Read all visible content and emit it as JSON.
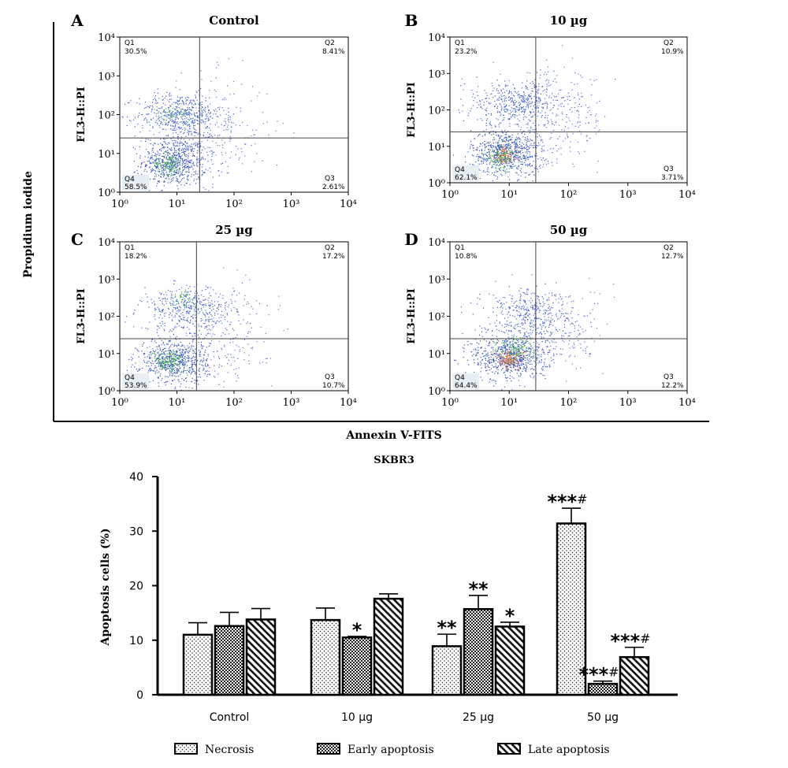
{
  "figure": {
    "y_axis_title": "Propidium iodide",
    "x_axis_title": "Annexin V-FITS"
  },
  "chart_data": [
    {
      "type": "scatter",
      "panel": "A",
      "title": "Control",
      "ylabel": "FL3-H::PI",
      "xscale": "log",
      "yscale": "log",
      "xlim": [
        1,
        10000
      ],
      "ylim": [
        1,
        10000
      ],
      "x_ticks": [
        "10⁰",
        "10¹",
        "10²",
        "10³",
        "10⁴"
      ],
      "y_ticks": [
        "10⁰",
        "10¹",
        "10²",
        "10³",
        "10⁴"
      ],
      "gate": {
        "x": 25,
        "y": 25
      },
      "quadrants": [
        {
          "name": "Q1",
          "value": "30.5%"
        },
        {
          "name": "Q2",
          "value": "8.41%"
        },
        {
          "name": "Q3",
          "value": "2.61%"
        },
        {
          "name": "Q4",
          "value": "58.5%"
        }
      ]
    },
    {
      "type": "scatter",
      "panel": "B",
      "title": "10 µg",
      "ylabel": "FL3-H::PI",
      "xscale": "log",
      "yscale": "log",
      "xlim": [
        1,
        10000
      ],
      "ylim": [
        1,
        10000
      ],
      "x_ticks": [
        "10⁰",
        "10¹",
        "10²",
        "10³",
        "10⁴"
      ],
      "y_ticks": [
        "10⁰",
        "10¹",
        "10²",
        "10³",
        "10⁴"
      ],
      "gate": {
        "x": 28,
        "y": 25
      },
      "quadrants": [
        {
          "name": "Q1",
          "value": "23.2%"
        },
        {
          "name": "Q2",
          "value": "10.9%"
        },
        {
          "name": "Q3",
          "value": "3.71%"
        },
        {
          "name": "Q4",
          "value": "62.1%"
        }
      ]
    },
    {
      "type": "scatter",
      "panel": "C",
      "title": "25 µg",
      "ylabel": "FL3-H::PI",
      "xscale": "log",
      "yscale": "log",
      "xlim": [
        1,
        10000
      ],
      "ylim": [
        1,
        10000
      ],
      "x_ticks": [
        "10⁰",
        "10¹",
        "10²",
        "10³",
        "10⁴"
      ],
      "y_ticks": [
        "10⁰",
        "10¹",
        "10²",
        "10³",
        "10⁴"
      ],
      "gate": {
        "x": 22,
        "y": 25
      },
      "quadrants": [
        {
          "name": "Q1",
          "value": "18.2%"
        },
        {
          "name": "Q2",
          "value": "17.2%"
        },
        {
          "name": "Q3",
          "value": "10.7%"
        },
        {
          "name": "Q4",
          "value": "53.9%"
        }
      ]
    },
    {
      "type": "scatter",
      "panel": "D",
      "title": "50 µg",
      "ylabel": "FL3-H::PI",
      "xscale": "log",
      "yscale": "log",
      "xlim": [
        1,
        10000
      ],
      "ylim": [
        1,
        10000
      ],
      "x_ticks": [
        "10⁰",
        "10¹",
        "10²",
        "10³",
        "10⁴"
      ],
      "y_ticks": [
        "10⁰",
        "10¹",
        "10²",
        "10³",
        "10⁴"
      ],
      "gate": {
        "x": 28,
        "y": 25
      },
      "quadrants": [
        {
          "name": "Q1",
          "value": "10.8%"
        },
        {
          "name": "Q2",
          "value": "12.7%"
        },
        {
          "name": "Q3",
          "value": "12.2%"
        },
        {
          "name": "Q4",
          "value": "64.4%"
        }
      ]
    },
    {
      "type": "bar",
      "title": "SKBR3",
      "ylabel": "Apoptosis cells (%)",
      "xlabel": "",
      "ylim": [
        0,
        40
      ],
      "y_ticks": [
        0,
        10,
        20,
        30,
        40
      ],
      "categories": [
        "Control",
        "10 µg",
        "25 µg",
        "50 µg"
      ],
      "series": [
        {
          "name": "Necrosis",
          "pattern": "dots",
          "values": [
            11,
            13.7,
            8.9,
            31.4
          ],
          "errors": [
            2.2,
            2.2,
            2.2,
            2.8
          ],
          "annotations": [
            "",
            "",
            "**",
            "***#"
          ]
        },
        {
          "name": "Early apoptosis",
          "pattern": "checker",
          "values": [
            12.6,
            10.5,
            15.7,
            2.0
          ],
          "errors": [
            2.5,
            0.2,
            2.5,
            0.5
          ],
          "annotations": [
            "",
            "*",
            "**",
            "***#"
          ]
        },
        {
          "name": "Late apoptosis",
          "pattern": "hatch",
          "values": [
            13.8,
            17.6,
            12.5,
            6.9
          ],
          "errors": [
            2.0,
            0.9,
            0.8,
            1.8
          ],
          "annotations": [
            "",
            "",
            "*",
            "***#"
          ]
        }
      ],
      "legend_position": "bottom"
    }
  ]
}
